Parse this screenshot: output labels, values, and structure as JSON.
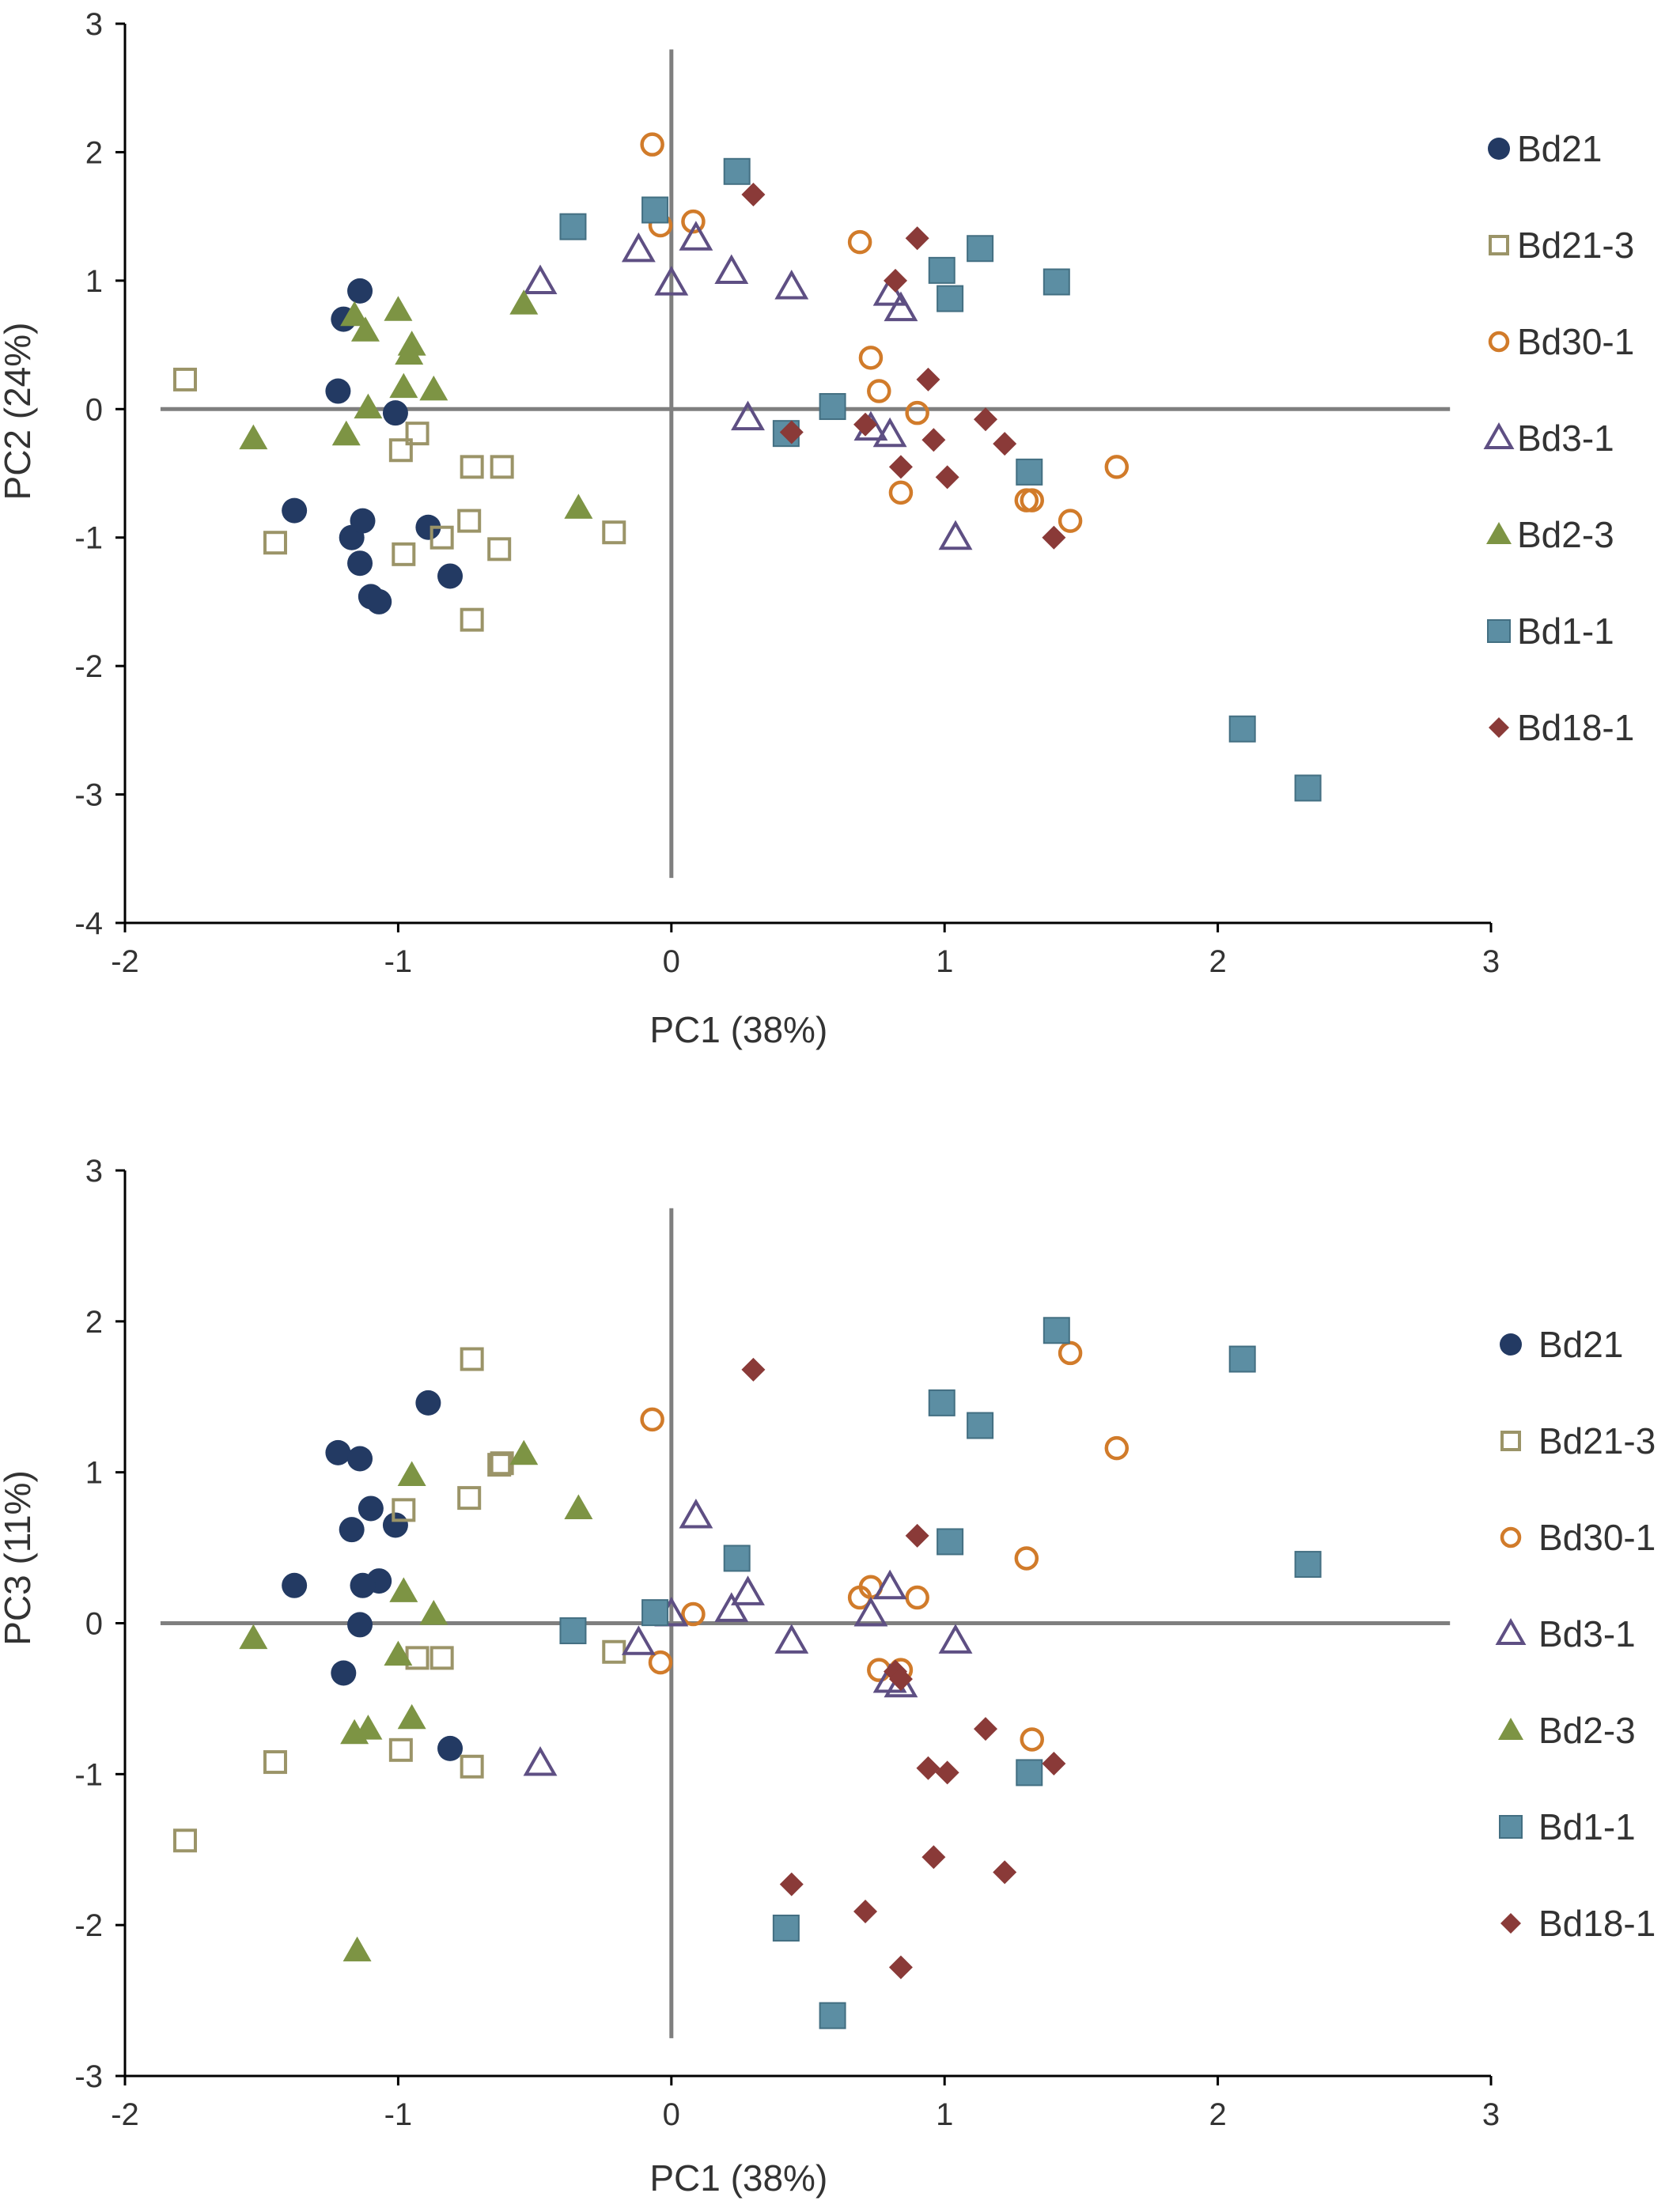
{
  "colors": {
    "Bd21": "#233a63",
    "Bd21-3": "#9b9468",
    "Bd30-1": "#d17b2a",
    "Bd3-1": "#5e4f83",
    "Bd2-3": "#7d9444",
    "Bd1-1": "#5c8ea3",
    "Bd18-1": "#8a3a38",
    "axis": "#7f7f7f"
  },
  "chart_data": [
    {
      "type": "scatter",
      "title": "",
      "xlabel": "PC1 (38%)",
      "ylabel": "PC2 (24%)",
      "xlim": [
        -2,
        3
      ],
      "ylim": [
        -4,
        3
      ],
      "x_ticks": [
        -2,
        -1,
        0,
        1,
        2,
        3
      ],
      "y_ticks": [
        -4,
        -3,
        -2,
        -1,
        0,
        1,
        2,
        3
      ],
      "legend_position": "right",
      "series": [
        {
          "name": "Bd21",
          "marker": "circle-filled",
          "points": [
            [
              -1.14,
              0.92
            ],
            [
              -1.2,
              0.7
            ],
            [
              -1.22,
              0.14
            ],
            [
              -1.01,
              -0.03
            ],
            [
              -1.38,
              -0.79
            ],
            [
              -0.89,
              -0.92
            ],
            [
              -1.17,
              -1.0
            ],
            [
              -1.13,
              -0.87
            ],
            [
              -1.14,
              -1.2
            ],
            [
              -0.81,
              -1.3
            ],
            [
              -1.1,
              -1.46
            ],
            [
              -1.07,
              -1.5
            ]
          ]
        },
        {
          "name": "Bd21-3",
          "marker": "square-open",
          "points": [
            [
              -1.78,
              0.23
            ],
            [
              -0.93,
              -0.19
            ],
            [
              -0.99,
              -0.32
            ],
            [
              -0.73,
              -0.45
            ],
            [
              -0.62,
              -0.45
            ],
            [
              -1.45,
              -1.04
            ],
            [
              -0.98,
              -1.13
            ],
            [
              -0.84,
              -1.0
            ],
            [
              -0.74,
              -0.87
            ],
            [
              -0.63,
              -1.09
            ],
            [
              -0.21,
              -0.96
            ],
            [
              -0.73,
              -1.64
            ]
          ]
        },
        {
          "name": "Bd30-1",
          "marker": "circle-open",
          "points": [
            [
              -0.07,
              2.06
            ],
            [
              -0.04,
              1.43
            ],
            [
              0.08,
              1.46
            ],
            [
              0.69,
              1.3
            ],
            [
              0.73,
              0.4
            ],
            [
              0.76,
              0.14
            ],
            [
              0.9,
              -0.03
            ],
            [
              0.84,
              -0.65
            ],
            [
              1.3,
              -0.71
            ],
            [
              1.32,
              -0.71
            ],
            [
              1.46,
              -0.87
            ],
            [
              1.63,
              -0.45
            ]
          ]
        },
        {
          "name": "Bd3-1",
          "marker": "triangle-open",
          "points": [
            [
              -0.48,
              0.99
            ],
            [
              -0.12,
              1.24
            ],
            [
              0.09,
              1.33
            ],
            [
              0.0,
              0.98
            ],
            [
              0.22,
              1.07
            ],
            [
              0.44,
              0.95
            ],
            [
              0.8,
              0.9
            ],
            [
              0.84,
              0.78
            ],
            [
              0.28,
              -0.07
            ],
            [
              0.73,
              -0.15
            ],
            [
              0.8,
              -0.2
            ],
            [
              1.04,
              -1.0
            ]
          ]
        },
        {
          "name": "Bd2-3",
          "marker": "triangle-filled",
          "points": [
            [
              -1.16,
              0.73
            ],
            [
              -1.12,
              0.61
            ],
            [
              -1.0,
              0.77
            ],
            [
              -0.95,
              0.5
            ],
            [
              -0.96,
              0.43
            ],
            [
              -0.98,
              0.17
            ],
            [
              -0.87,
              0.15
            ],
            [
              -0.54,
              0.82
            ],
            [
              -1.11,
              0.01
            ],
            [
              -1.19,
              -0.2
            ],
            [
              -1.53,
              -0.23
            ],
            [
              -0.34,
              -0.77
            ]
          ]
        },
        {
          "name": "Bd1-1",
          "marker": "square-filled",
          "points": [
            [
              -0.36,
              1.42
            ],
            [
              -0.06,
              1.55
            ],
            [
              0.24,
              1.85
            ],
            [
              0.99,
              1.08
            ],
            [
              1.02,
              0.86
            ],
            [
              1.13,
              1.25
            ],
            [
              1.41,
              0.99
            ],
            [
              0.59,
              0.02
            ],
            [
              0.42,
              -0.19
            ],
            [
              1.31,
              -0.49
            ],
            [
              2.09,
              -2.49
            ],
            [
              2.33,
              -2.95
            ]
          ]
        },
        {
          "name": "Bd18-1",
          "marker": "diamond-filled",
          "points": [
            [
              0.3,
              1.67
            ],
            [
              0.9,
              1.33
            ],
            [
              0.82,
              1.0
            ],
            [
              0.94,
              0.23
            ],
            [
              1.15,
              -0.08
            ],
            [
              0.44,
              -0.18
            ],
            [
              0.71,
              -0.12
            ],
            [
              0.96,
              -0.24
            ],
            [
              1.22,
              -0.27
            ],
            [
              0.84,
              -0.45
            ],
            [
              1.01,
              -0.53
            ],
            [
              1.4,
              -1.0
            ]
          ]
        }
      ]
    },
    {
      "type": "scatter",
      "title": "",
      "xlabel": "PC1 (38%)",
      "ylabel": "PC3 (11%)",
      "xlim": [
        -2,
        3
      ],
      "ylim": [
        -3,
        3
      ],
      "x_ticks": [
        -2,
        -1,
        0,
        1,
        2,
        3
      ],
      "y_ticks": [
        -3,
        -2,
        -1,
        0,
        1,
        2,
        3
      ],
      "legend_position": "right",
      "series": [
        {
          "name": "Bd21",
          "marker": "circle-filled",
          "points": [
            [
              -0.89,
              1.46
            ],
            [
              -1.22,
              1.13
            ],
            [
              -1.14,
              1.09
            ],
            [
              -1.1,
              0.76
            ],
            [
              -1.01,
              0.65
            ],
            [
              -1.17,
              0.62
            ],
            [
              -1.38,
              0.25
            ],
            [
              -1.07,
              0.28
            ],
            [
              -1.13,
              0.25
            ],
            [
              -1.14,
              -0.01
            ],
            [
              -1.2,
              -0.33
            ],
            [
              -0.81,
              -0.83
            ]
          ]
        },
        {
          "name": "Bd21-3",
          "marker": "square-open",
          "points": [
            [
              -0.73,
              1.75
            ],
            [
              -0.62,
              1.06
            ],
            [
              -0.63,
              1.05
            ],
            [
              -0.74,
              0.83
            ],
            [
              -0.98,
              0.75
            ],
            [
              -0.93,
              -0.23
            ],
            [
              -0.84,
              -0.23
            ],
            [
              -0.21,
              -0.19
            ],
            [
              -0.99,
              -0.84
            ],
            [
              -0.73,
              -0.95
            ],
            [
              -1.45,
              -0.92
            ],
            [
              -1.78,
              -1.44
            ]
          ]
        },
        {
          "name": "Bd30-1",
          "marker": "circle-open",
          "points": [
            [
              -0.07,
              1.35
            ],
            [
              0.08,
              0.06
            ],
            [
              -0.04,
              -0.26
            ],
            [
              0.69,
              0.17
            ],
            [
              0.73,
              0.24
            ],
            [
              0.9,
              0.17
            ],
            [
              0.76,
              -0.31
            ],
            [
              0.84,
              -0.31
            ],
            [
              1.3,
              0.43
            ],
            [
              1.32,
              -0.77
            ],
            [
              1.46,
              1.79
            ],
            [
              1.63,
              1.16
            ]
          ]
        },
        {
          "name": "Bd3-1",
          "marker": "triangle-open",
          "points": [
            [
              0.09,
              0.71
            ],
            [
              0.28,
              0.2
            ],
            [
              0.22,
              0.09
            ],
            [
              0.0,
              0.06
            ],
            [
              -0.12,
              -0.13
            ],
            [
              0.44,
              -0.12
            ],
            [
              0.73,
              0.06
            ],
            [
              0.8,
              0.24
            ],
            [
              1.04,
              -0.12
            ],
            [
              0.8,
              -0.38
            ],
            [
              0.84,
              -0.41
            ],
            [
              -0.48,
              -0.93
            ]
          ]
        },
        {
          "name": "Bd2-3",
          "marker": "triangle-filled",
          "points": [
            [
              -0.54,
              1.12
            ],
            [
              -0.95,
              0.98
            ],
            [
              -0.34,
              0.76
            ],
            [
              -0.98,
              0.21
            ],
            [
              -0.87,
              0.06
            ],
            [
              -1.53,
              -0.1
            ],
            [
              -1.0,
              -0.21
            ],
            [
              -1.16,
              -0.73
            ],
            [
              -1.11,
              -0.7
            ],
            [
              -0.95,
              -0.63
            ],
            [
              -1.15,
              -2.17
            ]
          ]
        },
        {
          "name": "Bd1-1",
          "marker": "square-filled",
          "points": [
            [
              1.41,
              1.94
            ],
            [
              2.09,
              1.75
            ],
            [
              0.99,
              1.46
            ],
            [
              1.13,
              1.31
            ],
            [
              1.02,
              0.54
            ],
            [
              2.33,
              0.39
            ],
            [
              0.24,
              0.43
            ],
            [
              -0.06,
              0.07
            ],
            [
              -0.36,
              -0.05
            ],
            [
              1.31,
              -0.99
            ],
            [
              0.42,
              -2.02
            ],
            [
              0.59,
              -2.6
            ]
          ]
        },
        {
          "name": "Bd18-1",
          "marker": "diamond-filled",
          "points": [
            [
              0.3,
              1.68
            ],
            [
              0.9,
              0.58
            ],
            [
              0.82,
              -0.32
            ],
            [
              0.84,
              -0.37
            ],
            [
              1.15,
              -0.7
            ],
            [
              1.4,
              -0.93
            ],
            [
              0.94,
              -0.96
            ],
            [
              1.01,
              -0.99
            ],
            [
              0.96,
              -1.55
            ],
            [
              1.22,
              -1.65
            ],
            [
              0.44,
              -1.73
            ],
            [
              0.71,
              -1.91
            ],
            [
              0.84,
              -2.28
            ]
          ]
        }
      ]
    }
  ]
}
